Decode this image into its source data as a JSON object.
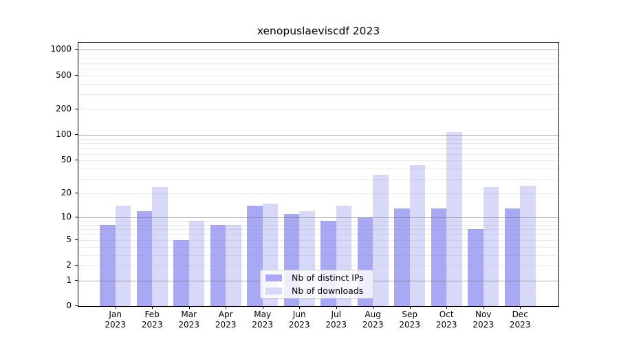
{
  "chart_data": {
    "type": "bar",
    "title": "xenopuslaeviscdf 2023",
    "categories": [
      {
        "month": "Jan",
        "year": "2023"
      },
      {
        "month": "Feb",
        "year": "2023"
      },
      {
        "month": "Mar",
        "year": "2023"
      },
      {
        "month": "Apr",
        "year": "2023"
      },
      {
        "month": "May",
        "year": "2023"
      },
      {
        "month": "Jun",
        "year": "2023"
      },
      {
        "month": "Jul",
        "year": "2023"
      },
      {
        "month": "Aug",
        "year": "2023"
      },
      {
        "month": "Sep",
        "year": "2023"
      },
      {
        "month": "Oct",
        "year": "2023"
      },
      {
        "month": "Nov",
        "year": "2023"
      },
      {
        "month": "Dec",
        "year": "2023"
      }
    ],
    "series": [
      {
        "name": "Nb of distinct IPs",
        "color": "#a8a8f5",
        "values": [
          8,
          12,
          5,
          8,
          14,
          11,
          9,
          10,
          13,
          13,
          7,
          13
        ]
      },
      {
        "name": "Nb of downloads",
        "color": "#d8d8f8",
        "values": [
          14,
          24,
          9,
          8,
          15,
          12,
          14,
          34,
          44,
          108,
          24,
          25
        ]
      }
    ],
    "xlabel": "",
    "ylabel": "",
    "y_scale": "log10(1+v)",
    "y_ticks": [
      0,
      1,
      2,
      5,
      10,
      20,
      50,
      100,
      200,
      500,
      1000
    ],
    "ylim": [
      0,
      1220
    ],
    "grid": "horizontal, major and minor, on",
    "legend_position": "lower center"
  }
}
